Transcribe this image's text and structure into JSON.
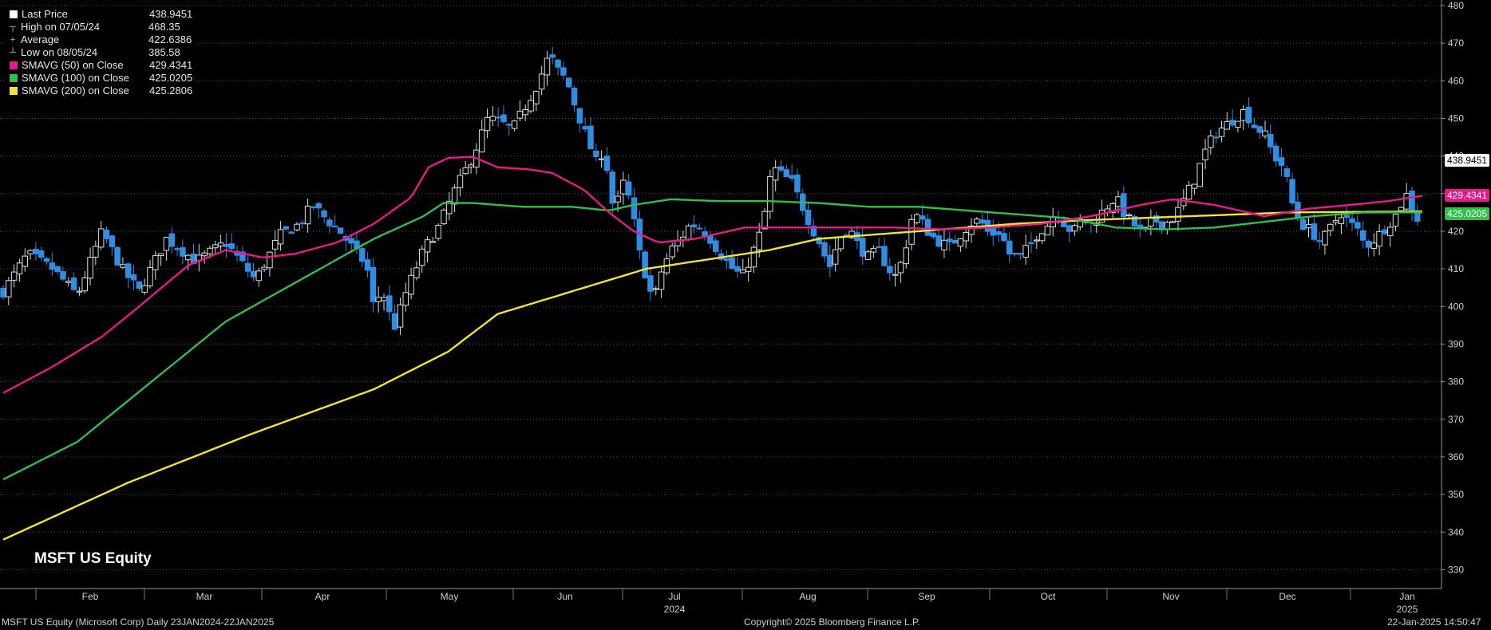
{
  "legend": [
    {
      "marker": "swatch",
      "color": "#ffffff",
      "label": "Last Price",
      "value": "438.9451"
    },
    {
      "marker": "┬",
      "label": "High on 07/05/24",
      "value": "468.35"
    },
    {
      "marker": "+",
      "label": "Average",
      "value": "422.6386"
    },
    {
      "marker": "┴",
      "label": "Low on 08/05/24",
      "value": "385.58"
    },
    {
      "marker": "swatch",
      "color": "#e8198b",
      "label": "SMAVG (50)  on Close",
      "value": "429.4341"
    },
    {
      "marker": "swatch",
      "color": "#2fbf4a",
      "label": "SMAVG (100)  on Close",
      "value": "425.0205"
    },
    {
      "marker": "swatch",
      "color": "#f2e335",
      "label": "SMAVG (200)  on Close",
      "value": "425.2806"
    }
  ],
  "tags": {
    "last": {
      "text": "438.9451",
      "value": 438.9451,
      "bg": "#ffffff",
      "fg": "#000000"
    },
    "sma50": {
      "text": "429.4341",
      "value": 429.4341,
      "bg": "#e8198b",
      "fg": "#ffffff"
    },
    "sma100": {
      "text": "425.0205",
      "value": 425.0205,
      "bg": "#2fbf4a",
      "fg": "#ffffff"
    }
  },
  "security_label": "MSFT US Equity",
  "footer": {
    "left": "MSFT US Equity (Microsoft Corp)  Daily 23JAN2024-22JAN2025",
    "center": "Copyright© 2025 Bloomberg Finance L.P.",
    "right": "22-Jan-2025 14:50:47"
  },
  "chart_data": {
    "type": "candlestick",
    "ylim": [
      325,
      480
    ],
    "yticks": [
      330,
      340,
      350,
      360,
      370,
      380,
      390,
      400,
      410,
      420,
      430,
      440,
      450,
      460,
      470,
      480
    ],
    "month_labels": [
      "Feb",
      "Mar",
      "Apr",
      "May",
      "Jun",
      "Jul",
      "Aug",
      "Sep",
      "Oct",
      "Nov",
      "Dec",
      "Jan"
    ],
    "year_labels": [
      {
        "under": "Jul",
        "text": "2024"
      },
      {
        "under": "Jan",
        "text": "2025"
      }
    ],
    "colors": {
      "up": "#ffffff",
      "down": "#2f8de4",
      "grid": "#555555"
    },
    "close_path": [
      [
        0,
        404
      ],
      [
        10,
        414
      ],
      [
        20,
        410
      ],
      [
        30,
        403
      ],
      [
        40,
        420
      ],
      [
        48,
        410
      ],
      [
        55,
        404
      ],
      [
        66,
        418
      ],
      [
        78,
        412
      ],
      [
        90,
        417
      ],
      [
        102,
        407
      ],
      [
        112,
        419
      ],
      [
        120,
        422
      ],
      [
        125,
        427
      ],
      [
        131,
        423
      ],
      [
        136,
        420
      ],
      [
        142,
        415
      ],
      [
        147,
        411
      ],
      [
        150,
        399
      ],
      [
        153,
        405
      ],
      [
        158,
        394
      ],
      [
        163,
        404
      ],
      [
        170,
        415
      ],
      [
        176,
        421
      ],
      [
        182,
        430
      ],
      [
        190,
        440
      ],
      [
        196,
        450
      ],
      [
        201,
        449
      ],
      [
        206,
        447
      ],
      [
        211,
        453
      ],
      [
        216,
        459
      ],
      [
        221,
        467
      ],
      [
        224,
        463
      ],
      [
        228,
        460
      ],
      [
        232,
        452
      ],
      [
        236,
        445
      ],
      [
        240,
        438
      ],
      [
        243,
        442
      ],
      [
        247,
        425
      ],
      [
        251,
        433
      ],
      [
        254,
        427
      ],
      [
        257,
        415
      ],
      [
        260,
        408
      ],
      [
        263,
        401
      ],
      [
        266,
        409
      ],
      [
        270,
        415
      ],
      [
        274,
        418
      ],
      [
        278,
        422
      ],
      [
        282,
        421
      ],
      [
        286,
        418
      ],
      [
        290,
        414
      ],
      [
        295,
        410
      ],
      [
        299,
        408
      ],
      [
        303,
        414
      ],
      [
        307,
        421
      ],
      [
        311,
        437
      ],
      [
        315,
        435
      ],
      [
        319,
        433
      ],
      [
        323,
        427
      ],
      [
        327,
        421
      ],
      [
        331,
        416
      ],
      [
        334,
        410
      ],
      [
        338,
        418
      ],
      [
        342,
        421
      ],
      [
        346,
        416
      ],
      [
        350,
        413
      ],
      [
        354,
        415
      ],
      [
        358,
        410
      ],
      [
        361,
        408
      ],
      [
        364,
        413
      ],
      [
        368,
        425
      ],
      [
        371,
        423
      ],
      [
        375,
        419
      ],
      [
        379,
        417
      ],
      [
        383,
        416
      ],
      [
        387,
        419
      ],
      [
        391,
        422
      ],
      [
        395,
        423
      ],
      [
        399,
        419
      ],
      [
        403,
        420
      ],
      [
        407,
        414
      ],
      [
        411,
        413
      ],
      [
        415,
        416
      ],
      [
        419,
        420
      ],
      [
        423,
        422
      ],
      [
        426,
        426
      ],
      [
        430,
        421
      ],
      [
        433,
        420
      ],
      [
        436,
        423
      ],
      [
        440,
        422
      ],
      [
        443,
        424
      ],
      [
        447,
        427
      ],
      [
        450,
        429
      ],
      [
        454,
        424
      ],
      [
        457,
        422
      ],
      [
        461,
        419
      ],
      [
        465,
        423
      ],
      [
        470,
        422
      ],
      [
        474,
        424
      ],
      [
        478,
        429
      ],
      [
        482,
        434
      ],
      [
        486,
        441
      ],
      [
        490,
        446
      ],
      [
        494,
        448
      ],
      [
        498,
        450
      ],
      [
        502,
        452
      ],
      [
        506,
        448
      ],
      [
        510,
        446
      ],
      [
        514,
        440
      ],
      [
        518,
        437
      ],
      [
        521,
        428
      ],
      [
        525,
        422
      ],
      [
        529,
        420
      ],
      [
        533,
        417
      ],
      [
        537,
        421
      ],
      [
        541,
        425
      ],
      [
        545,
        422
      ],
      [
        548,
        420
      ],
      [
        551,
        416
      ],
      [
        555,
        418
      ],
      [
        559,
        421
      ],
      [
        563,
        424
      ],
      [
        566,
        428
      ],
      [
        568,
        430
      ],
      [
        571,
        424
      ],
      [
        574,
        422
      ]
    ],
    "sma50_path": [
      [
        0,
        377
      ],
      [
        20,
        384
      ],
      [
        40,
        392
      ],
      [
        55,
        400
      ],
      [
        75,
        411
      ],
      [
        90,
        415
      ],
      [
        105,
        413
      ],
      [
        118,
        414
      ],
      [
        135,
        417
      ],
      [
        150,
        422
      ],
      [
        165,
        429
      ],
      [
        172,
        437
      ],
      [
        180,
        439.5
      ],
      [
        190,
        439.8
      ],
      [
        200,
        437
      ],
      [
        212,
        436.5
      ],
      [
        222,
        435.5
      ],
      [
        235,
        431
      ],
      [
        245,
        425
      ],
      [
        255,
        420
      ],
      [
        265,
        417
      ],
      [
        280,
        418
      ],
      [
        300,
        421
      ],
      [
        320,
        421
      ],
      [
        340,
        421
      ],
      [
        360,
        421
      ],
      [
        380,
        420.5
      ],
      [
        400,
        421
      ],
      [
        420,
        422
      ],
      [
        440,
        424
      ],
      [
        460,
        427
      ],
      [
        473,
        428.5
      ],
      [
        490,
        427
      ],
      [
        510,
        424
      ],
      [
        528,
        426
      ],
      [
        545,
        427
      ],
      [
        560,
        428
      ],
      [
        574,
        429.4341
      ]
    ],
    "sma100_path": [
      [
        0,
        354
      ],
      [
        30,
        364
      ],
      [
        60,
        380
      ],
      [
        90,
        396
      ],
      [
        120,
        407
      ],
      [
        150,
        418
      ],
      [
        170,
        424
      ],
      [
        178,
        427.5
      ],
      [
        190,
        427.5
      ],
      [
        210,
        426.5
      ],
      [
        230,
        426.5
      ],
      [
        245,
        425.5
      ],
      [
        255,
        427
      ],
      [
        270,
        428.5
      ],
      [
        290,
        428
      ],
      [
        310,
        428
      ],
      [
        330,
        427.5
      ],
      [
        350,
        426.5
      ],
      [
        370,
        426.5
      ],
      [
        390,
        425.5
      ],
      [
        410,
        424.5
      ],
      [
        430,
        423.5
      ],
      [
        450,
        421
      ],
      [
        470,
        420.5
      ],
      [
        490,
        421
      ],
      [
        510,
        422.5
      ],
      [
        530,
        424
      ],
      [
        550,
        425
      ],
      [
        574,
        425.0205
      ]
    ],
    "sma200_path": [
      [
        0,
        338
      ],
      [
        50,
        353
      ],
      [
        100,
        366
      ],
      [
        150,
        378
      ],
      [
        180,
        388
      ],
      [
        200,
        398
      ],
      [
        230,
        404
      ],
      [
        260,
        410
      ],
      [
        290,
        413
      ],
      [
        310,
        415
      ],
      [
        330,
        418
      ],
      [
        370,
        420
      ],
      [
        410,
        422
      ],
      [
        440,
        423
      ],
      [
        480,
        424
      ],
      [
        520,
        425
      ],
      [
        574,
        425.2806
      ]
    ]
  }
}
